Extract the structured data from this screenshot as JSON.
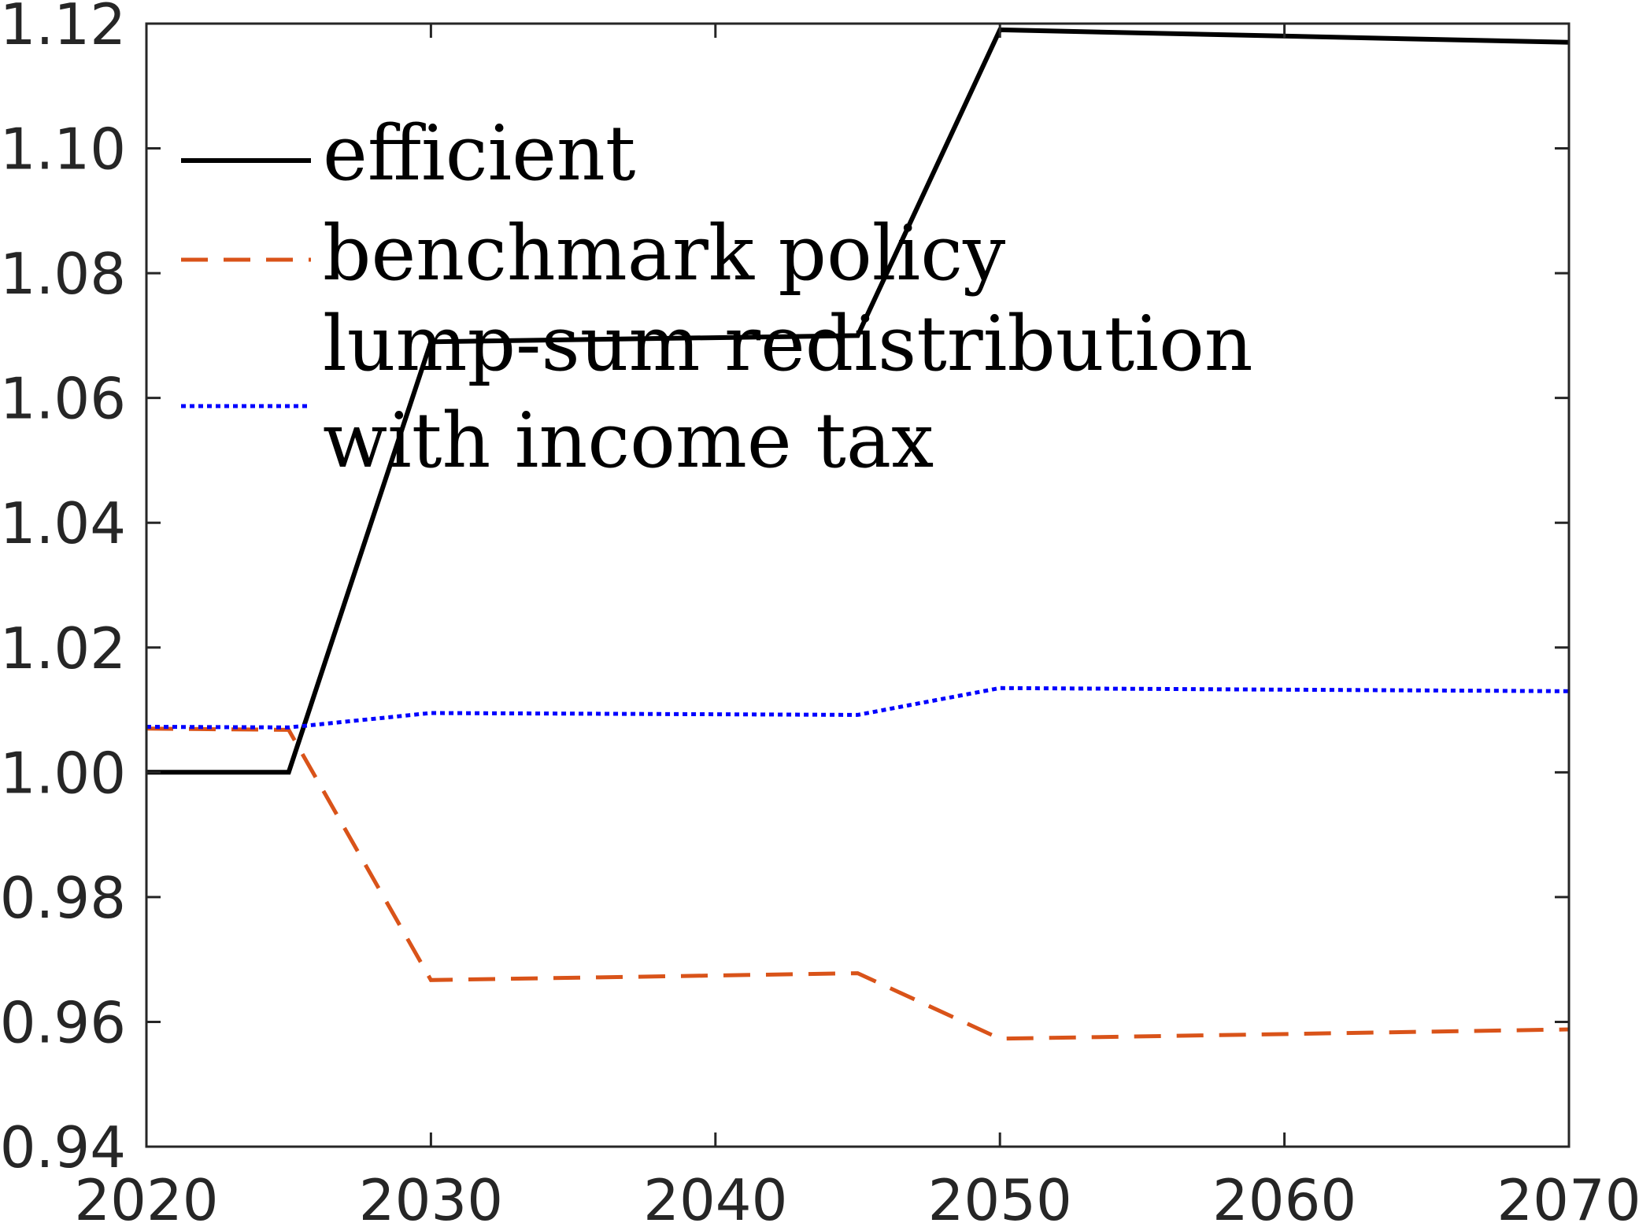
{
  "chart_data": {
    "type": "line",
    "title": "",
    "xlabel": "",
    "ylabel": "",
    "xlim": [
      2020,
      2070
    ],
    "ylim": [
      0.94,
      1.12
    ],
    "xticks": [
      2020,
      2030,
      2040,
      2050,
      2060,
      2070
    ],
    "xtick_labels": [
      "2020",
      "2030",
      "2040",
      "2050",
      "2060",
      "2070"
    ],
    "yticks": [
      0.94,
      0.96,
      0.98,
      1.0,
      1.02,
      1.04,
      1.06,
      1.08,
      1.1,
      1.12
    ],
    "ytick_labels": [
      "0.94",
      "0.96",
      "0.98",
      "1.00",
      "1.02",
      "1.04",
      "1.06",
      "1.08",
      "1.10",
      "1.12"
    ],
    "grid": false,
    "legend_position": "top-left",
    "series": [
      {
        "name": "efficient",
        "color": "#000000",
        "style": "solid",
        "x": [
          2020,
          2025,
          2030,
          2045,
          2050,
          2070
        ],
        "y": [
          1.0,
          1.0,
          1.069,
          1.07,
          1.119,
          1.117
        ]
      },
      {
        "name": "benchmark policy",
        "color": "#D95319",
        "style": "dashed",
        "x": [
          2020,
          2025,
          2030,
          2045,
          2050,
          2070
        ],
        "y": [
          1.007,
          1.0068,
          0.9667,
          0.9678,
          0.9573,
          0.9588
        ]
      },
      {
        "name": "lump-sum redistribution with income tax",
        "name_lines": [
          "lump-sum redistribution",
          "with income tax"
        ],
        "color": "#0000FF",
        "style": "dotted",
        "x": [
          2020,
          2025,
          2030,
          2045,
          2050,
          2070
        ],
        "y": [
          1.0073,
          1.0072,
          1.0095,
          1.0092,
          1.0135,
          1.013
        ]
      }
    ]
  }
}
